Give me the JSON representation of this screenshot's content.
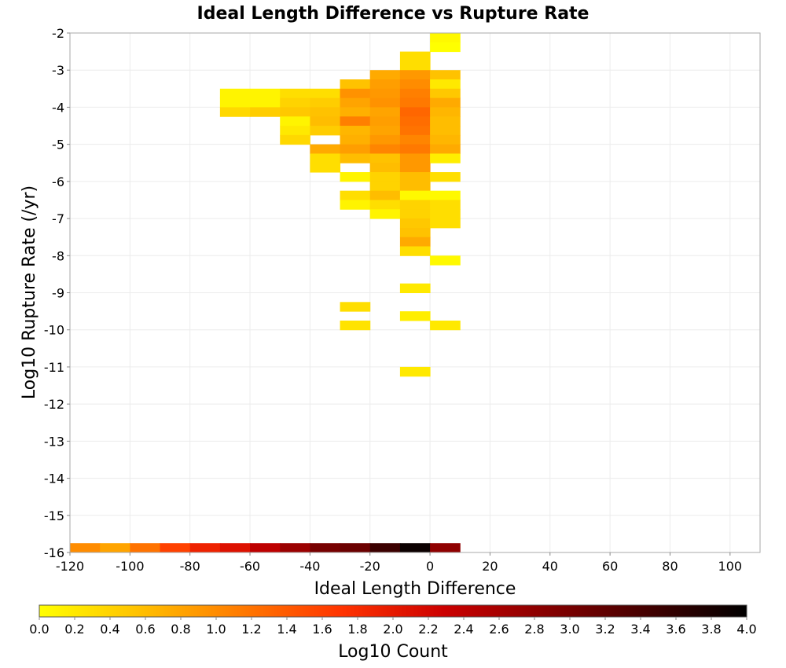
{
  "chart_data": {
    "type": "heatmap",
    "title": "Ideal Length Difference vs Rupture Rate",
    "xlabel": "Ideal Length Difference",
    "ylabel": "Log10 Rupture Rate (/yr)",
    "xlim": [
      -120,
      110
    ],
    "ylim": [
      -16,
      -2
    ],
    "x_ticks": [
      "-120",
      "-100",
      "-80",
      "-60",
      "-40",
      "-20",
      "0",
      "20",
      "40",
      "60",
      "80",
      "100"
    ],
    "y_ticks": [
      "-2",
      "-3",
      "-4",
      "-5",
      "-6",
      "-7",
      "-8",
      "-9",
      "-10",
      "-11",
      "-12",
      "-13",
      "-14",
      "-15",
      "-16"
    ],
    "grid": true,
    "bin_width_x": 10,
    "bin_height_y": 0.25,
    "colorbar": {
      "label": "Log10 Count",
      "range": [
        0,
        4
      ],
      "ticks": [
        "0.0",
        "0.2",
        "0.4",
        "0.6",
        "0.8",
        "1.0",
        "1.2",
        "1.4",
        "1.6",
        "1.8",
        "2.0",
        "2.2",
        "2.4",
        "2.6",
        "2.8",
        "3.0",
        "3.2",
        "3.4",
        "3.6",
        "3.8",
        "4.0"
      ],
      "placement": "bottom",
      "colors": [
        "#ffff00",
        "#ffc000",
        "#ff7a00",
        "#ff3300",
        "#cc0000",
        "#880000",
        "#440000",
        "#000000"
      ]
    },
    "cells_note": "each cell: [x_start, y_start, log10_count]",
    "cells": [
      [
        0,
        -2.25,
        0.05
      ],
      [
        0,
        -2.5,
        0.0
      ],
      [
        -10,
        -2.75,
        0.3
      ],
      [
        -10,
        -3.0,
        0.3
      ],
      [
        -30,
        -3.5,
        0.55
      ],
      [
        -20,
        -3.25,
        0.75
      ],
      [
        -20,
        -3.5,
        0.85
      ],
      [
        -10,
        -3.25,
        0.9
      ],
      [
        -10,
        -3.5,
        1.0
      ],
      [
        0,
        -3.25,
        0.55
      ],
      [
        0,
        -3.5,
        0.2
      ],
      [
        -70,
        -3.75,
        0.1
      ],
      [
        -60,
        -3.75,
        0.1
      ],
      [
        -50,
        -3.75,
        0.3
      ],
      [
        -40,
        -3.75,
        0.3
      ],
      [
        -30,
        -3.75,
        0.95
      ],
      [
        -20,
        -3.75,
        0.9
      ],
      [
        -10,
        -3.75,
        1.1
      ],
      [
        0,
        -3.75,
        0.5
      ],
      [
        -70,
        -4.0,
        0.1
      ],
      [
        -60,
        -4.0,
        0.1
      ],
      [
        -50,
        -4.0,
        0.4
      ],
      [
        -40,
        -4.0,
        0.45
      ],
      [
        -30,
        -4.0,
        0.8
      ],
      [
        -20,
        -4.0,
        0.95
      ],
      [
        -10,
        -4.0,
        1.15
      ],
      [
        0,
        -4.0,
        0.75
      ],
      [
        -70,
        -4.25,
        0.35
      ],
      [
        -60,
        -4.25,
        0.45
      ],
      [
        -50,
        -4.25,
        0.5
      ],
      [
        -40,
        -4.25,
        0.55
      ],
      [
        -30,
        -4.25,
        0.7
      ],
      [
        -20,
        -4.25,
        0.8
      ],
      [
        -10,
        -4.25,
        1.3
      ],
      [
        0,
        -4.25,
        0.65
      ],
      [
        -50,
        -4.5,
        0.1
      ],
      [
        -40,
        -4.5,
        0.6
      ],
      [
        -30,
        -4.5,
        1.1
      ],
      [
        -20,
        -4.5,
        0.85
      ],
      [
        -10,
        -4.5,
        1.25
      ],
      [
        0,
        -4.5,
        0.6
      ],
      [
        -50,
        -4.75,
        0.2
      ],
      [
        -40,
        -4.75,
        0.45
      ],
      [
        -30,
        -4.75,
        0.65
      ],
      [
        -20,
        -4.75,
        0.8
      ],
      [
        -10,
        -4.75,
        1.2
      ],
      [
        0,
        -4.75,
        0.6
      ],
      [
        -50,
        -5.0,
        0.35
      ],
      [
        -30,
        -5.0,
        0.7
      ],
      [
        -20,
        -5.0,
        0.9
      ],
      [
        -10,
        -5.0,
        1.05
      ],
      [
        0,
        -5.0,
        0.65
      ],
      [
        -40,
        -5.25,
        0.75
      ],
      [
        -30,
        -5.25,
        0.85
      ],
      [
        -20,
        -5.25,
        1.05
      ],
      [
        -10,
        -5.25,
        1.15
      ],
      [
        0,
        -5.25,
        0.75
      ],
      [
        -40,
        -5.5,
        0.3
      ],
      [
        -30,
        -5.5,
        0.6
      ],
      [
        -20,
        -5.5,
        0.55
      ],
      [
        -10,
        -5.5,
        0.9
      ],
      [
        0,
        -5.5,
        0.15
      ],
      [
        -40,
        -5.75,
        0.3
      ],
      [
        -20,
        -5.75,
        0.6
      ],
      [
        -10,
        -5.75,
        0.9
      ],
      [
        -30,
        -6.0,
        0.1
      ],
      [
        -20,
        -6.0,
        0.4
      ],
      [
        -10,
        -6.0,
        0.6
      ],
      [
        0,
        -6.0,
        0.3
      ],
      [
        -20,
        -6.25,
        0.4
      ],
      [
        -10,
        -6.25,
        0.6
      ],
      [
        -30,
        -6.5,
        0.3
      ],
      [
        -20,
        -6.5,
        0.6
      ],
      [
        -10,
        -6.5,
        0.05
      ],
      [
        0,
        -6.5,
        0.05
      ],
      [
        -30,
        -6.75,
        0.1
      ],
      [
        -20,
        -6.75,
        0.3
      ],
      [
        -10,
        -6.75,
        0.4
      ],
      [
        0,
        -6.75,
        0.3
      ],
      [
        -20,
        -7.0,
        0.1
      ],
      [
        -10,
        -7.0,
        0.4
      ],
      [
        0,
        -7.0,
        0.3
      ],
      [
        -10,
        -7.25,
        0.5
      ],
      [
        0,
        -7.25,
        0.3
      ],
      [
        -10,
        -7.5,
        0.55
      ],
      [
        -10,
        -7.75,
        0.75
      ],
      [
        -10,
        -8.0,
        0.3
      ],
      [
        0,
        -8.25,
        0.05
      ],
      [
        -10,
        -9.0,
        0.2
      ],
      [
        -30,
        -9.5,
        0.3
      ],
      [
        -10,
        -9.75,
        0.15
      ],
      [
        -30,
        -10.0,
        0.25
      ],
      [
        0,
        -10.0,
        0.2
      ],
      [
        -10,
        -11.25,
        0.2
      ],
      [
        -120,
        -16.0,
        1.0
      ],
      [
        -110,
        -16.0,
        0.8
      ],
      [
        -100,
        -16.0,
        1.2
      ],
      [
        -90,
        -16.0,
        1.6
      ],
      [
        -80,
        -16.0,
        1.9
      ],
      [
        -70,
        -16.0,
        2.1
      ],
      [
        -60,
        -16.0,
        2.4
      ],
      [
        -50,
        -16.0,
        2.7
      ],
      [
        -40,
        -16.0,
        3.0
      ],
      [
        -30,
        -16.0,
        3.1
      ],
      [
        -20,
        -16.0,
        3.5
      ],
      [
        -10,
        -16.0,
        3.9
      ],
      [
        0,
        -16.0,
        2.8
      ]
    ]
  }
}
